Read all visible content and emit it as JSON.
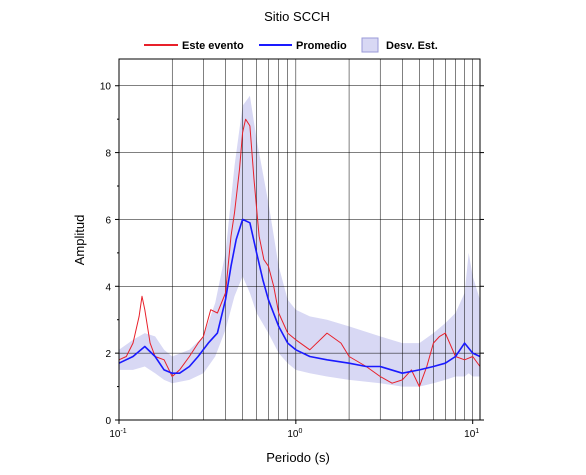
{
  "chart_data": {
    "type": "line",
    "title": "Sitio SCCH",
    "xlabel": "Periodo (s)",
    "ylabel": "Amplitud",
    "x_scale": "log",
    "xlim": [
      0.1,
      11
    ],
    "ylim": [
      0,
      10.8
    ],
    "x_ticks": [
      {
        "value": 0.1,
        "base": "10",
        "exp": "-1"
      },
      {
        "value": 1,
        "base": "10",
        "exp": "0"
      },
      {
        "value": 10,
        "base": "10",
        "exp": "1"
      }
    ],
    "y_ticks": [
      0,
      2,
      4,
      6,
      8,
      10
    ],
    "grid": true,
    "legend_position": "top",
    "legend": {
      "event": "Este evento",
      "mean": "Promedio",
      "std": "Desv. Est."
    },
    "colors": {
      "event": "#e8202a",
      "mean": "#1a1aff",
      "std_fill": "#d8d8f4",
      "std_edge": "#9a9ad8"
    },
    "series": [
      {
        "name": "Este evento",
        "x": [
          0.1,
          0.11,
          0.12,
          0.13,
          0.135,
          0.14,
          0.15,
          0.16,
          0.18,
          0.2,
          0.22,
          0.25,
          0.28,
          0.3,
          0.33,
          0.36,
          0.4,
          0.43,
          0.45,
          0.48,
          0.5,
          0.52,
          0.55,
          0.58,
          0.62,
          0.66,
          0.7,
          0.75,
          0.8,
          0.9,
          1.0,
          1.2,
          1.5,
          1.8,
          2.0,
          2.5,
          3.0,
          3.5,
          4.0,
          4.5,
          5.0,
          5.5,
          6.0,
          6.5,
          7.0,
          8.0,
          9.0,
          10.0,
          11.0
        ],
        "y": [
          1.8,
          1.9,
          2.3,
          3.1,
          3.7,
          3.3,
          2.3,
          1.9,
          1.8,
          1.3,
          1.5,
          1.9,
          2.3,
          2.5,
          3.3,
          3.2,
          3.8,
          5.5,
          6.2,
          7.5,
          8.6,
          9.0,
          8.8,
          7.2,
          5.5,
          4.8,
          4.6,
          4.0,
          3.2,
          2.6,
          2.4,
          2.1,
          2.6,
          2.3,
          1.9,
          1.6,
          1.3,
          1.1,
          1.2,
          1.5,
          1.0,
          1.6,
          2.3,
          2.5,
          2.6,
          1.9,
          1.8,
          1.9,
          1.6
        ]
      },
      {
        "name": "Promedio",
        "x": [
          0.1,
          0.12,
          0.14,
          0.16,
          0.18,
          0.2,
          0.22,
          0.25,
          0.28,
          0.32,
          0.36,
          0.4,
          0.43,
          0.46,
          0.5,
          0.55,
          0.6,
          0.65,
          0.7,
          0.8,
          0.9,
          1.0,
          1.2,
          1.5,
          2.0,
          2.5,
          3.0,
          4.0,
          5.0,
          6.0,
          7.0,
          8.0,
          9.0,
          10.0,
          11.0
        ],
        "y": [
          1.7,
          1.9,
          2.2,
          1.9,
          1.5,
          1.4,
          1.4,
          1.6,
          1.9,
          2.3,
          2.6,
          3.6,
          4.6,
          5.4,
          6.0,
          5.9,
          5.0,
          4.2,
          3.6,
          2.8,
          2.3,
          2.1,
          1.9,
          1.8,
          1.7,
          1.6,
          1.6,
          1.4,
          1.5,
          1.6,
          1.7,
          1.9,
          2.3,
          2.0,
          1.9
        ]
      }
    ],
    "band": {
      "name": "Desv. Est.",
      "x": [
        0.1,
        0.12,
        0.14,
        0.16,
        0.18,
        0.2,
        0.25,
        0.3,
        0.35,
        0.4,
        0.45,
        0.5,
        0.55,
        0.6,
        0.7,
        0.8,
        0.9,
        1.0,
        1.2,
        1.5,
        2.0,
        3.0,
        4.0,
        5.0,
        6.0,
        7.0,
        8.0,
        9.0,
        9.5,
        10.0,
        11.0
      ],
      "upper": [
        2.1,
        2.4,
        2.6,
        2.5,
        2.1,
        1.9,
        2.1,
        2.5,
        3.5,
        5.0,
        7.6,
        9.4,
        9.7,
        8.4,
        6.5,
        4.6,
        3.6,
        3.3,
        3.1,
        3.0,
        2.8,
        2.5,
        2.3,
        2.3,
        2.6,
        2.9,
        3.2,
        3.8,
        5.0,
        4.3,
        3.6
      ],
      "lower": [
        1.5,
        1.5,
        1.6,
        1.4,
        1.2,
        1.1,
        1.2,
        1.4,
        1.9,
        2.7,
        3.7,
        4.3,
        3.8,
        3.2,
        2.6,
        2.0,
        1.7,
        1.5,
        1.4,
        1.3,
        1.2,
        1.1,
        1.0,
        1.0,
        1.1,
        1.2,
        1.3,
        1.3,
        1.4,
        1.3,
        1.3
      ]
    }
  }
}
